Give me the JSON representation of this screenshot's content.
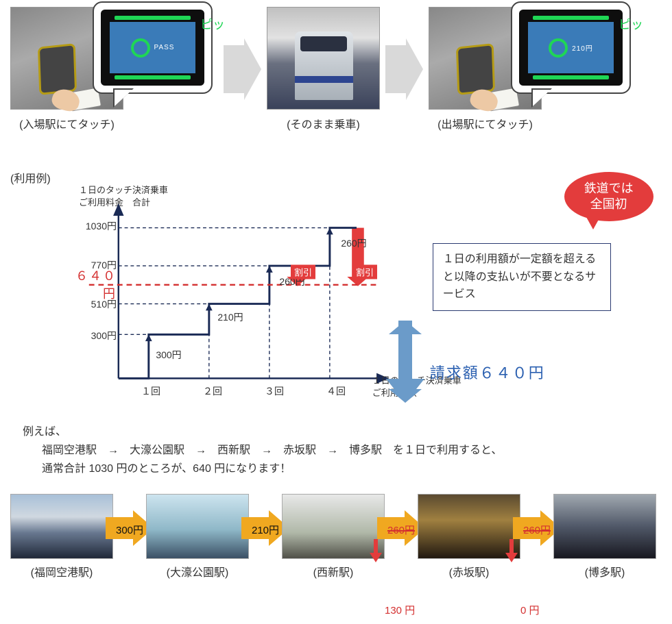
{
  "steps": {
    "enter": {
      "caption": "(入場駅にてタッチ)",
      "sound": "ピッ",
      "screen_text": "PASS"
    },
    "ride": {
      "caption": "(そのまま乗車)"
    },
    "exit": {
      "caption": "(出場駅にてタッチ)",
      "sound": "ピッ",
      "screen_text": "210円"
    }
  },
  "colors": {
    "accent_blue": "#2a5fb0",
    "dark_navy": "#1a2a55",
    "red": "#e33c3c",
    "green": "#1fd655",
    "arrow_gray": "#d9d9d9",
    "arrow_yellow": "#f0a820",
    "dash_red": "#d43030"
  },
  "chart": {
    "section_label": "(利用例)",
    "y_title": "１日のタッチ決済乗車\nご利用料金　合計",
    "x_title": "１日のタッチ決済乗車\nご利用回数",
    "y_ticks": [
      {
        "label": "300円",
        "value": 300
      },
      {
        "label": "510円",
        "value": 510
      },
      {
        "label": "770円",
        "value": 770
      },
      {
        "label": "1030円",
        "value": 1030
      }
    ],
    "cap_line": {
      "label": "６４０円",
      "value": 640
    },
    "x_ticks": [
      "１回",
      "２回",
      "３回",
      "４回"
    ],
    "steps": [
      {
        "from": 0,
        "to": 300,
        "inc": "300円",
        "label": "300円"
      },
      {
        "from": 300,
        "to": 510,
        "inc": "210円",
        "label": "210円"
      },
      {
        "from": 510,
        "to": 770,
        "inc": "260円",
        "label": "260円",
        "discount": true
      },
      {
        "from": 770,
        "to": 1030,
        "inc": "260円",
        "label": "260円",
        "discount": true
      }
    ],
    "discount_tag": "割引",
    "ylim": [
      0,
      1100
    ],
    "axis_color": "#1a2a55",
    "step_color": "#1a2a55",
    "dash_color": "#1a2a55",
    "cap_color": "#d43030"
  },
  "badge": {
    "line1": "鉄道では",
    "line2": "全国初"
  },
  "info_box": "１日の利用額が一定額を超えると以降の支払いが不要となるサービス",
  "billing_label": "請求額６４０円",
  "example": {
    "lead": "例えば、",
    "route": "福岡空港駅　→　大濠公園駅　→　西新駅　→　赤坂駅　→　博多駅　を１日で利用すると、\n通常合計 1030 円のところが、640 円になります！"
  },
  "stations": [
    {
      "name": "(福岡空港駅)",
      "img": "v1"
    },
    {
      "name": "(大濠公園駅)",
      "img": "v2"
    },
    {
      "name": "(西新駅)",
      "img": "v3"
    },
    {
      "name": "(赤坂駅)",
      "img": "v4"
    },
    {
      "name": "(博多駅)",
      "img": "v5"
    }
  ],
  "station_fares": [
    {
      "label": "300円",
      "strike": false
    },
    {
      "label": "210円",
      "strike": false
    },
    {
      "label": "260円",
      "strike": true,
      "new": "130 円"
    },
    {
      "label": "260円",
      "strike": true,
      "new": "0 円"
    }
  ]
}
